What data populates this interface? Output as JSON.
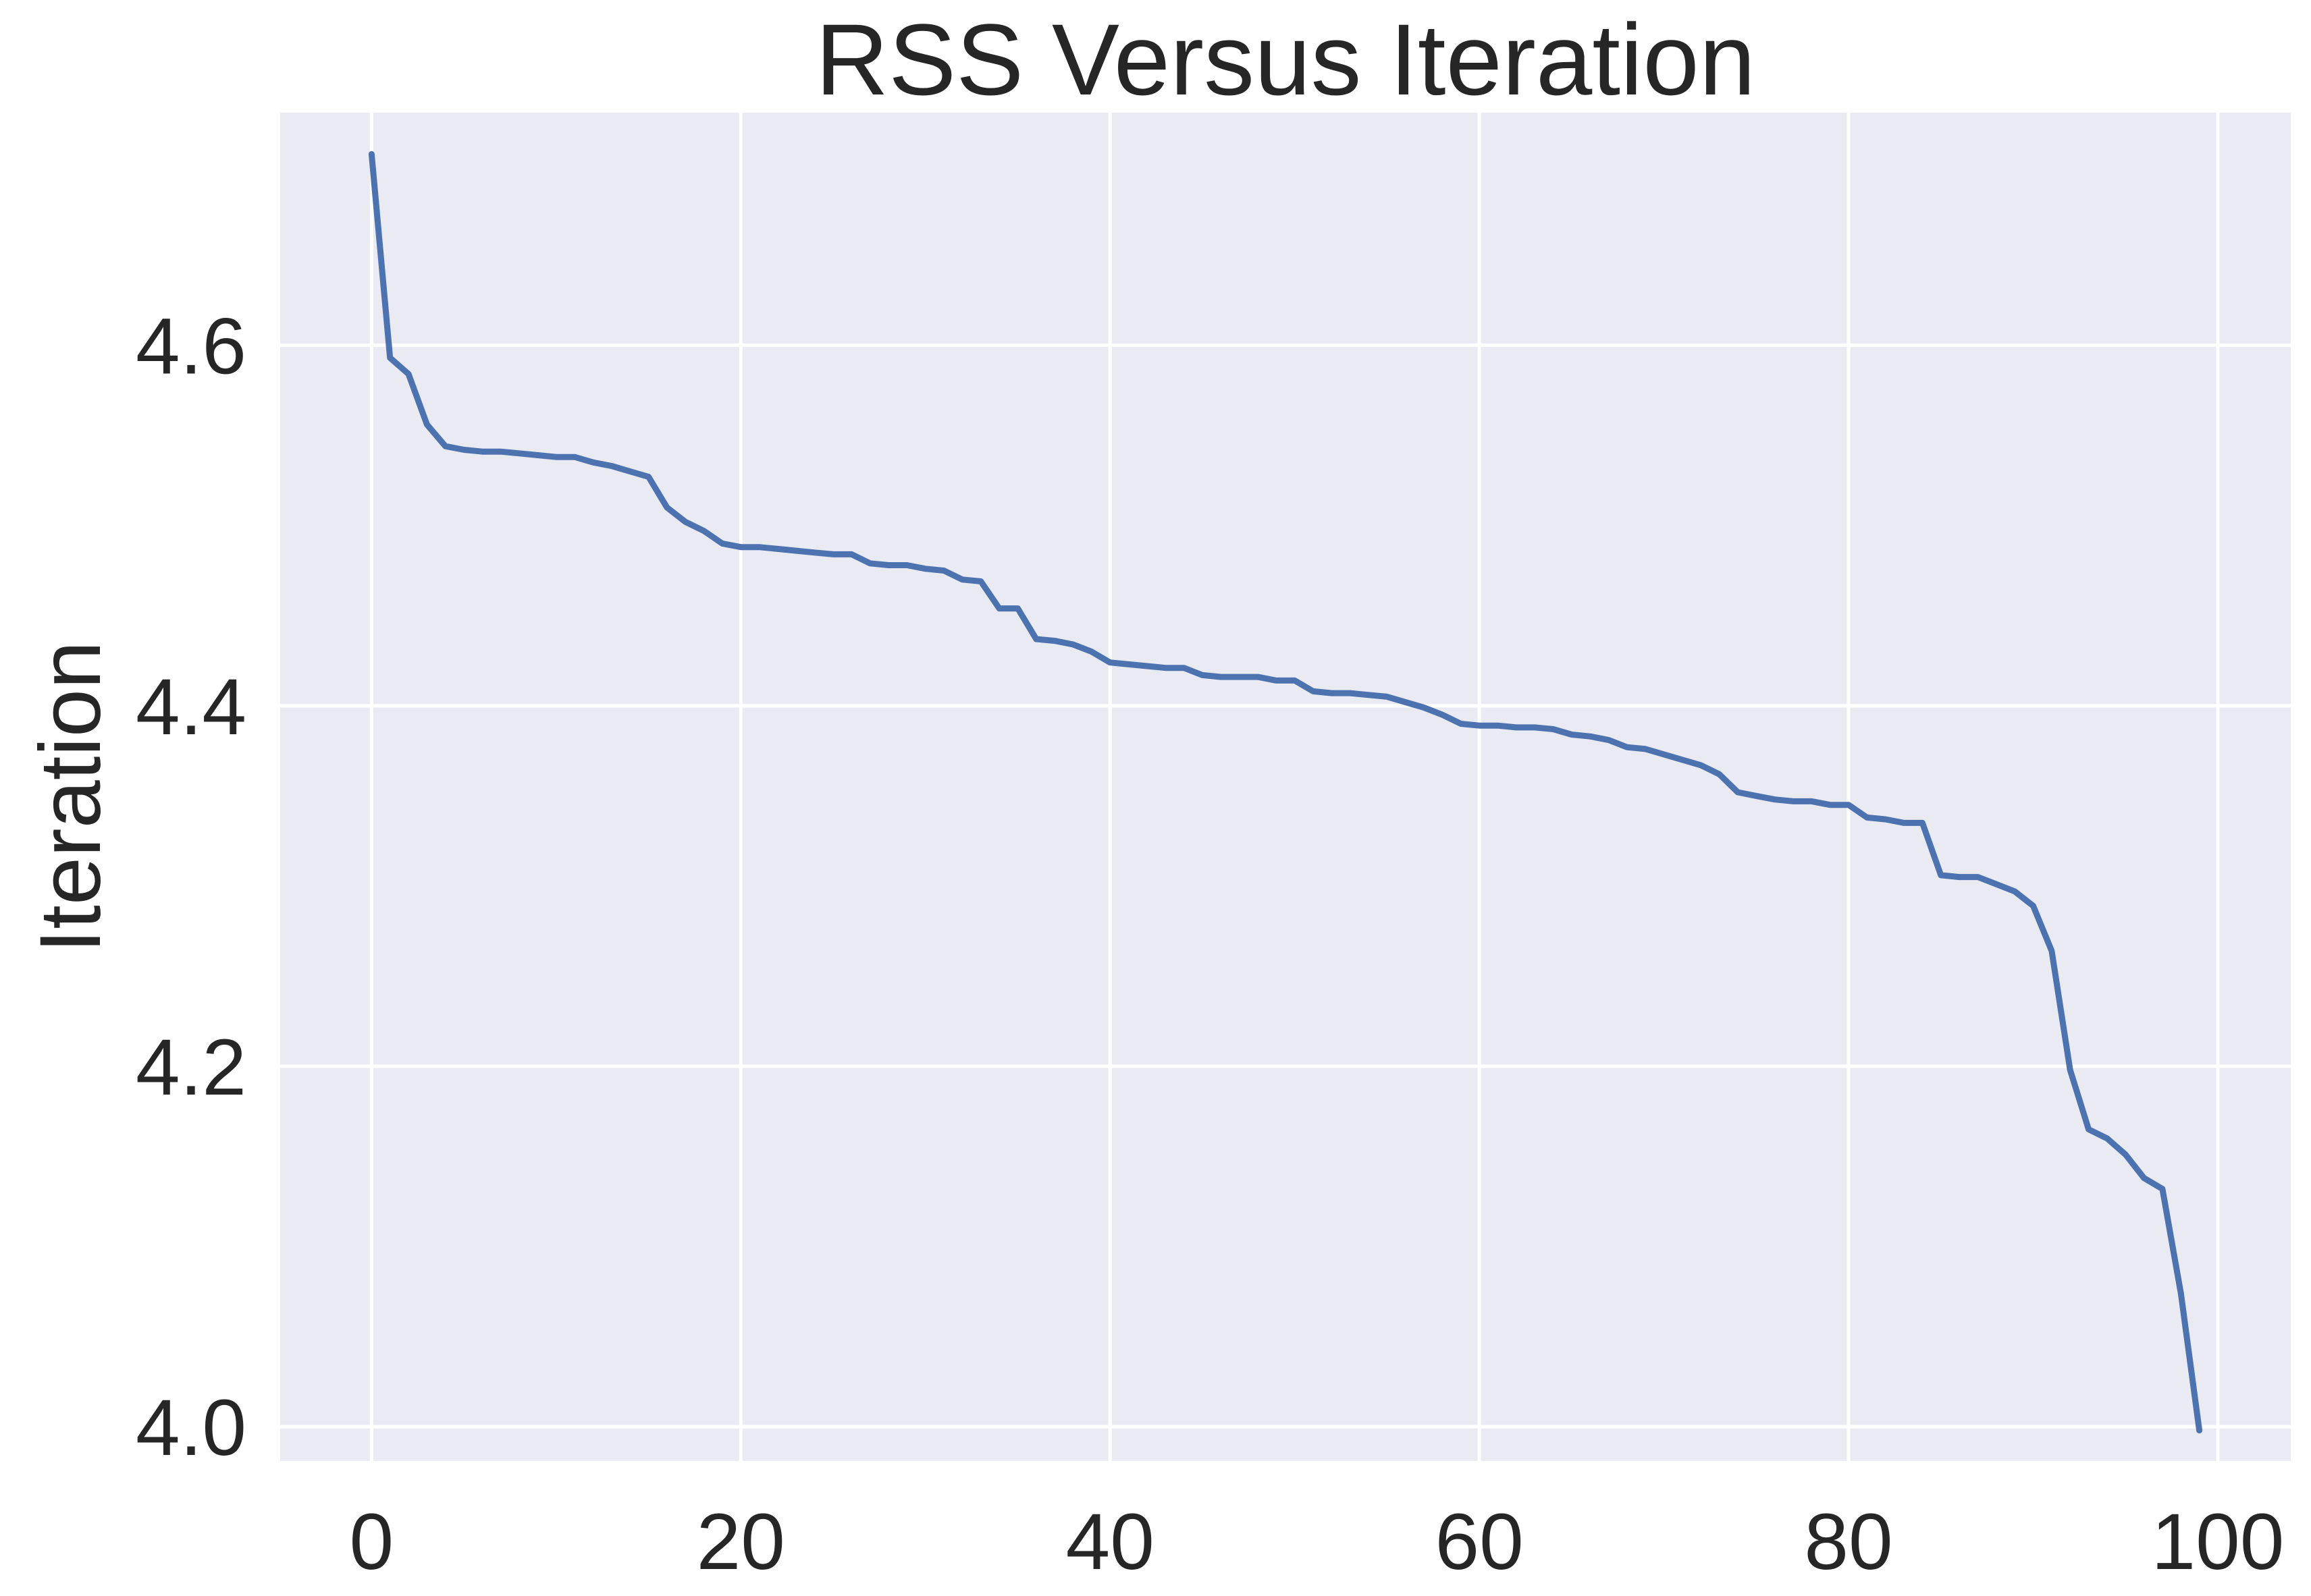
{
  "chart_data": {
    "type": "line",
    "title": "RSS Versus Iteration",
    "xlabel": "",
    "ylabel": "Iteration",
    "xlim": [
      -4.95,
      103.95
    ],
    "ylim": [
      3.981,
      4.729
    ],
    "xticks": [
      0,
      20,
      40,
      60,
      80,
      100
    ],
    "xtick_labels": [
      "0",
      "20",
      "40",
      "60",
      "80",
      "100"
    ],
    "yticks": [
      4.0,
      4.2,
      4.4,
      4.6
    ],
    "ytick_labels": [
      "4.0",
      "4.2",
      "4.4",
      "4.6"
    ],
    "grid": true,
    "legend": "none",
    "colors": {
      "background": "#EAEAF2",
      "grid": "#FFFFFF",
      "line": "#4C72B0",
      "text": "#262626"
    },
    "series": [
      {
        "x": [
          0,
          1,
          2,
          3,
          4,
          5,
          6,
          7,
          8,
          9,
          10,
          11,
          12,
          13,
          14,
          15,
          16,
          17,
          18,
          19,
          20,
          21,
          22,
          23,
          24,
          25,
          26,
          27,
          28,
          29,
          30,
          31,
          32,
          33,
          34,
          35,
          36,
          37,
          38,
          39,
          40,
          41,
          42,
          43,
          44,
          45,
          46,
          47,
          48,
          49,
          50,
          51,
          52,
          53,
          54,
          55,
          56,
          57,
          58,
          59,
          60,
          61,
          62,
          63,
          64,
          65,
          66,
          67,
          68,
          69,
          70,
          71,
          72,
          73,
          74,
          75,
          76,
          77,
          78,
          79,
          80,
          81,
          82,
          83,
          84,
          85,
          86,
          87,
          88,
          89,
          90,
          91,
          92,
          93,
          94,
          95,
          96,
          97,
          98,
          99
        ],
        "values": [
          4.706,
          4.593,
          4.584,
          4.556,
          4.544,
          4.542,
          4.541,
          4.541,
          4.54,
          4.539,
          4.538,
          4.538,
          4.535,
          4.533,
          4.53,
          4.527,
          4.51,
          4.502,
          4.497,
          4.49,
          4.488,
          4.488,
          4.487,
          4.486,
          4.485,
          4.484,
          4.484,
          4.479,
          4.478,
          4.478,
          4.476,
          4.475,
          4.47,
          4.469,
          4.454,
          4.454,
          4.437,
          4.436,
          4.434,
          4.43,
          4.424,
          4.423,
          4.422,
          4.421,
          4.421,
          4.417,
          4.416,
          4.416,
          4.416,
          4.414,
          4.414,
          4.408,
          4.407,
          4.407,
          4.406,
          4.405,
          4.402,
          4.399,
          4.395,
          4.39,
          4.389,
          4.389,
          4.388,
          4.388,
          4.387,
          4.384,
          4.383,
          4.381,
          4.377,
          4.376,
          4.373,
          4.37,
          4.367,
          4.362,
          4.352,
          4.35,
          4.348,
          4.347,
          4.347,
          4.345,
          4.345,
          4.338,
          4.337,
          4.335,
          4.335,
          4.306,
          4.305,
          4.305,
          4.301,
          4.297,
          4.289,
          4.264,
          4.198,
          4.165,
          4.16,
          4.151,
          4.138,
          4.132,
          4.074,
          3.998
        ]
      }
    ]
  }
}
